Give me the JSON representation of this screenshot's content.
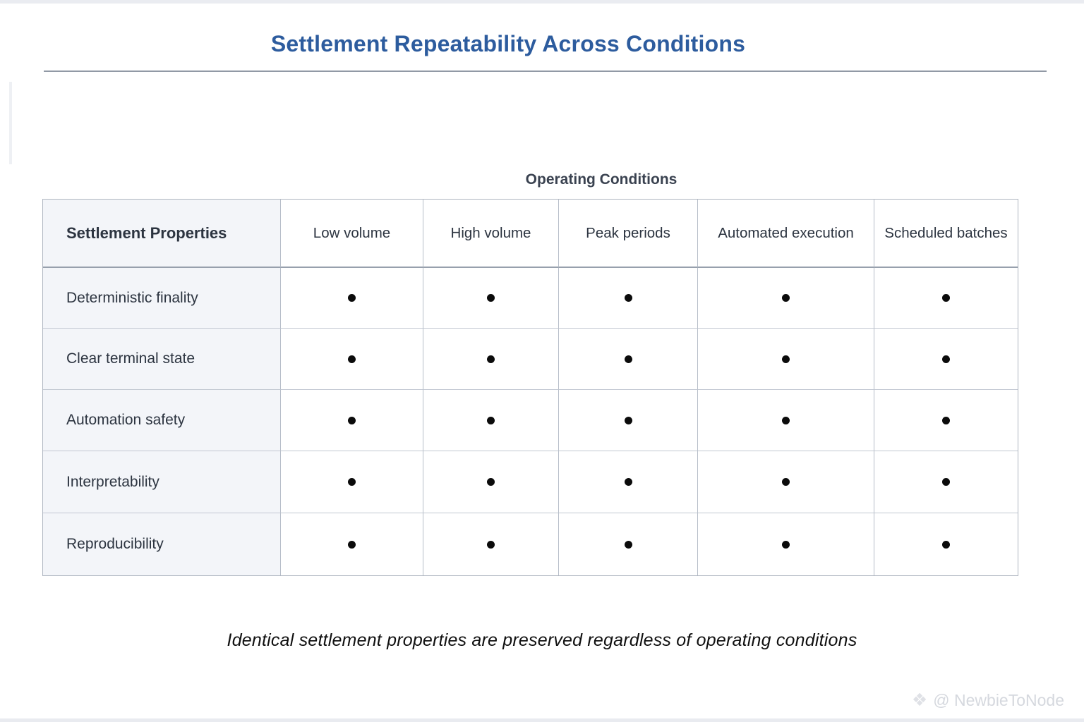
{
  "page": {
    "title": "Settlement Repeatability Across Conditions",
    "caption": "Identical settlement properties are preserved regardless of operating conditions",
    "watermark_text": "@ NewbieToNode"
  },
  "chart_data": {
    "type": "table",
    "title": "Settlement Repeatability Across Conditions",
    "group_header": "Operating Conditions",
    "row_header": "Settlement Properties",
    "columns": [
      "Low volume",
      "High volume",
      "Peak periods",
      "Automated execution",
      "Scheduled batches"
    ],
    "rows": [
      {
        "label": "Deterministic finality",
        "values": [
          true,
          true,
          true,
          true,
          true
        ]
      },
      {
        "label": "Clear terminal state",
        "values": [
          true,
          true,
          true,
          true,
          true
        ]
      },
      {
        "label": "Automation safety",
        "values": [
          true,
          true,
          true,
          true,
          true
        ]
      },
      {
        "label": "Interpretability",
        "values": [
          true,
          true,
          true,
          true,
          true
        ]
      },
      {
        "label": "Reproducibility",
        "values": [
          true,
          true,
          true,
          true,
          true
        ]
      }
    ],
    "cell_marker": "filled-dot",
    "caption": "Identical settlement properties are preserved regardless of operating conditions",
    "layout": {
      "row_header_column_shaded": true,
      "grid": true,
      "legend": "none"
    }
  },
  "colors": {
    "title": "#2d5c9e",
    "header_text": "#2c3440",
    "row_header_bg": "#f3f5f9",
    "border": "#b6bdc8",
    "dot": "#0b0b0b",
    "watermark": "#d5d8de"
  }
}
